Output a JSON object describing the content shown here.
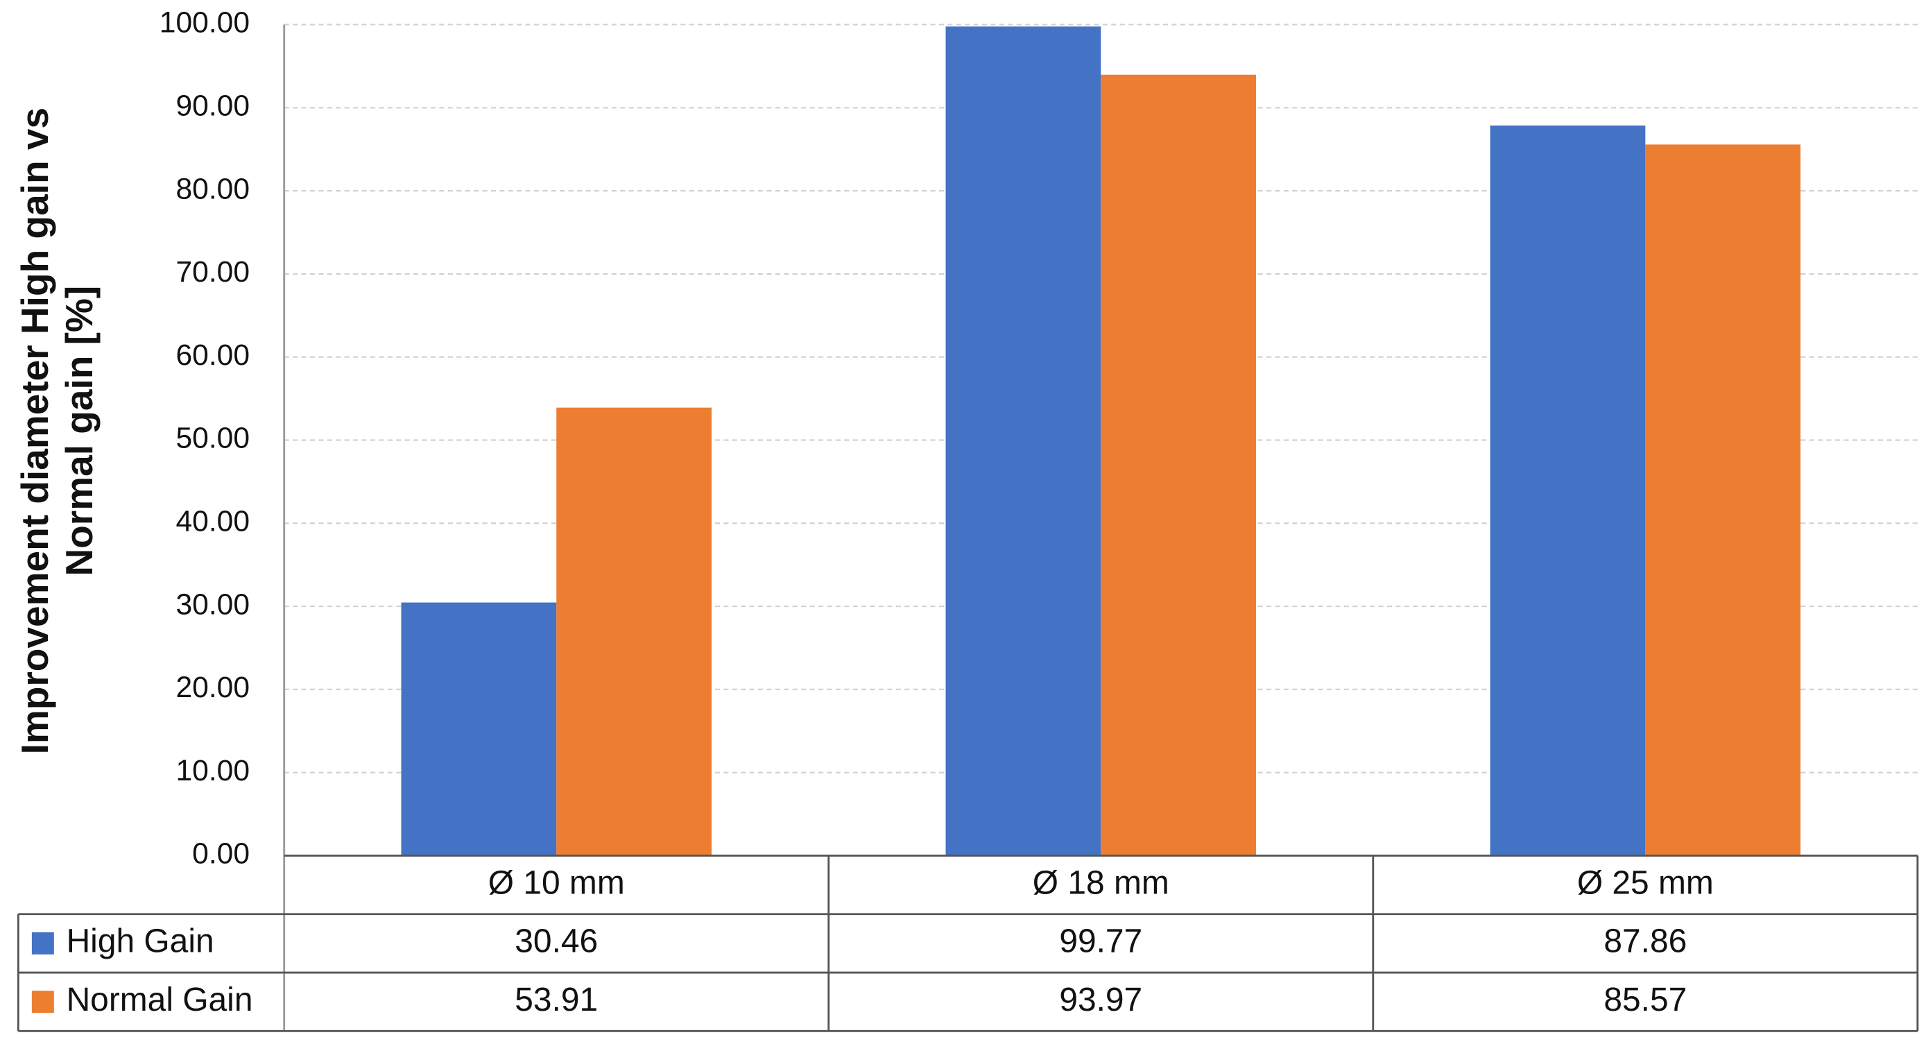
{
  "chart_data": {
    "type": "bar",
    "y_label": "Improvement diameter High gain vs Normal gain [%]",
    "categories": [
      "Ø 10 mm",
      "Ø 18 mm",
      "Ø 25 mm"
    ],
    "series": [
      {
        "name": "High Gain",
        "color": "#4472c4",
        "values": [
          30.46,
          99.77,
          87.86
        ]
      },
      {
        "name": "Normal Gain",
        "color": "#ed7d31",
        "values": [
          53.91,
          93.97,
          85.57
        ]
      }
    ],
    "ylim": [
      0,
      100
    ],
    "yticks": [
      {
        "value": 0,
        "label": "0.00"
      },
      {
        "value": 10,
        "label": "10.00"
      },
      {
        "value": 20,
        "label": "20.00"
      },
      {
        "value": 30,
        "label": "30.00"
      },
      {
        "value": 40,
        "label": "40.00"
      },
      {
        "value": 50,
        "label": "50.00"
      },
      {
        "value": 60,
        "label": "60.00"
      },
      {
        "value": 70,
        "label": "70.00"
      },
      {
        "value": 80,
        "label": "80.00"
      },
      {
        "value": 90,
        "label": "90.00"
      },
      {
        "value": 100,
        "label": "100.00"
      }
    ],
    "grid": true,
    "data_table": true
  }
}
